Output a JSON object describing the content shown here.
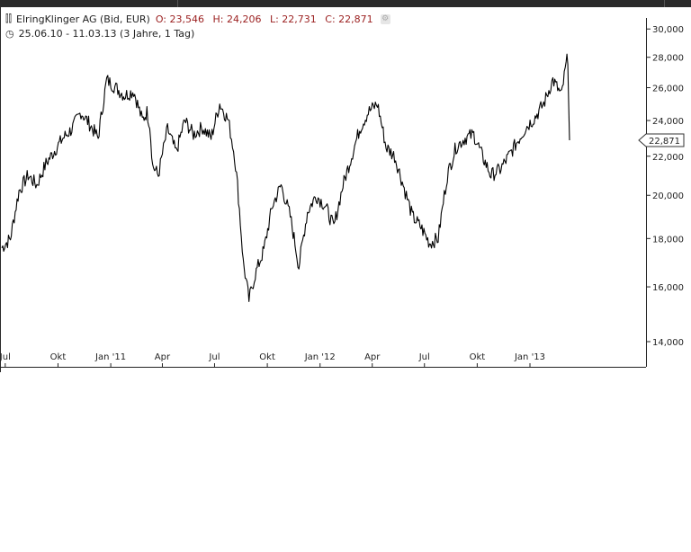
{
  "header": {
    "instrument": "ElringKlinger AG (Bid, EUR)",
    "open": "O: 23,546",
    "high": "H: 24,206",
    "low": "L: 22,731",
    "close": "C: 22,871",
    "range": "25.06.10 - 11.03.13 (3 Jahre, 1 Tag)"
  },
  "icons": {
    "chart_type": "ohlc-bars-icon",
    "clock": "clock-icon",
    "settings": "gear-icon"
  },
  "colors": {
    "line": "#000000",
    "ohlc_text": "#9a1e1e",
    "frame": "#2a2a2a"
  },
  "chart_data": {
    "type": "line",
    "x_ticks": [
      "Jul",
      "Okt",
      "Jan '11",
      "Apr",
      "Jul",
      "Okt",
      "Jan '12",
      "Apr",
      "Jul",
      "Okt",
      "Jan '13"
    ],
    "y_ticks": [
      "14,000",
      "16,000",
      "18,000",
      "20,000",
      "22,000",
      "24,000",
      "26,000",
      "28,000",
      "30,000"
    ],
    "ylim": [
      14,
      30
    ],
    "y_scale": "log",
    "last_value_label": "22,871",
    "series": [
      {
        "x": [
          "2010-06-25",
          "2010-07-10",
          "2010-07-25",
          "2010-08-10",
          "2010-08-25",
          "2010-09-10",
          "2010-09-25",
          "2010-10-10",
          "2010-10-25",
          "2010-11-10",
          "2010-11-25",
          "2010-12-10",
          "2010-12-25",
          "2011-01-10",
          "2011-01-25",
          "2011-02-10",
          "2011-02-25",
          "2011-03-05",
          "2011-03-10",
          "2011-03-15",
          "2011-03-25",
          "2011-04-10",
          "2011-04-25",
          "2011-05-10",
          "2011-05-25",
          "2011-06-10",
          "2011-06-25",
          "2011-07-10",
          "2011-07-25",
          "2011-08-05",
          "2011-08-10",
          "2011-08-20",
          "2011-08-30",
          "2011-09-10",
          "2011-09-25",
          "2011-10-10",
          "2011-10-25",
          "2011-11-10",
          "2011-11-25",
          "2011-12-10",
          "2011-12-25",
          "2012-01-10",
          "2012-01-25",
          "2012-02-10",
          "2012-02-25",
          "2012-03-10",
          "2012-03-25",
          "2012-04-10",
          "2012-04-25",
          "2012-05-10",
          "2012-05-25",
          "2012-06-10",
          "2012-06-25",
          "2012-07-10",
          "2012-07-25",
          "2012-08-10",
          "2012-08-25",
          "2012-09-10",
          "2012-09-25",
          "2012-10-10",
          "2012-10-25",
          "2012-11-10",
          "2012-11-25",
          "2012-12-10",
          "2012-12-25",
          "2013-01-10",
          "2013-01-25",
          "2013-02-10",
          "2013-02-25",
          "2013-03-05",
          "2013-03-08",
          "2013-03-11"
        ],
        "values": [
          17.6,
          18.0,
          20.2,
          21.0,
          20.5,
          21.6,
          22.3,
          23.0,
          23.5,
          24.5,
          23.8,
          23.0,
          26.5,
          26.0,
          25.5,
          25.8,
          24.0,
          24.5,
          23.8,
          21.5,
          21.0,
          23.5,
          22.2,
          24.0,
          23.2,
          23.6,
          23.0,
          25.0,
          24.0,
          22.0,
          20.5,
          17.0,
          15.5,
          16.5,
          17.5,
          19.5,
          20.5,
          19.0,
          16.8,
          19.2,
          20.0,
          19.5,
          18.5,
          20.5,
          22.0,
          23.5,
          24.5,
          25.0,
          22.5,
          22.0,
          20.5,
          19.0,
          18.5,
          17.8,
          18.0,
          21.0,
          22.5,
          23.0,
          23.2,
          22.0,
          21.0,
          21.3,
          22.0,
          22.8,
          23.6,
          24.2,
          25.0,
          26.5,
          25.5,
          27.5,
          28.0,
          22.871
        ]
      }
    ]
  }
}
